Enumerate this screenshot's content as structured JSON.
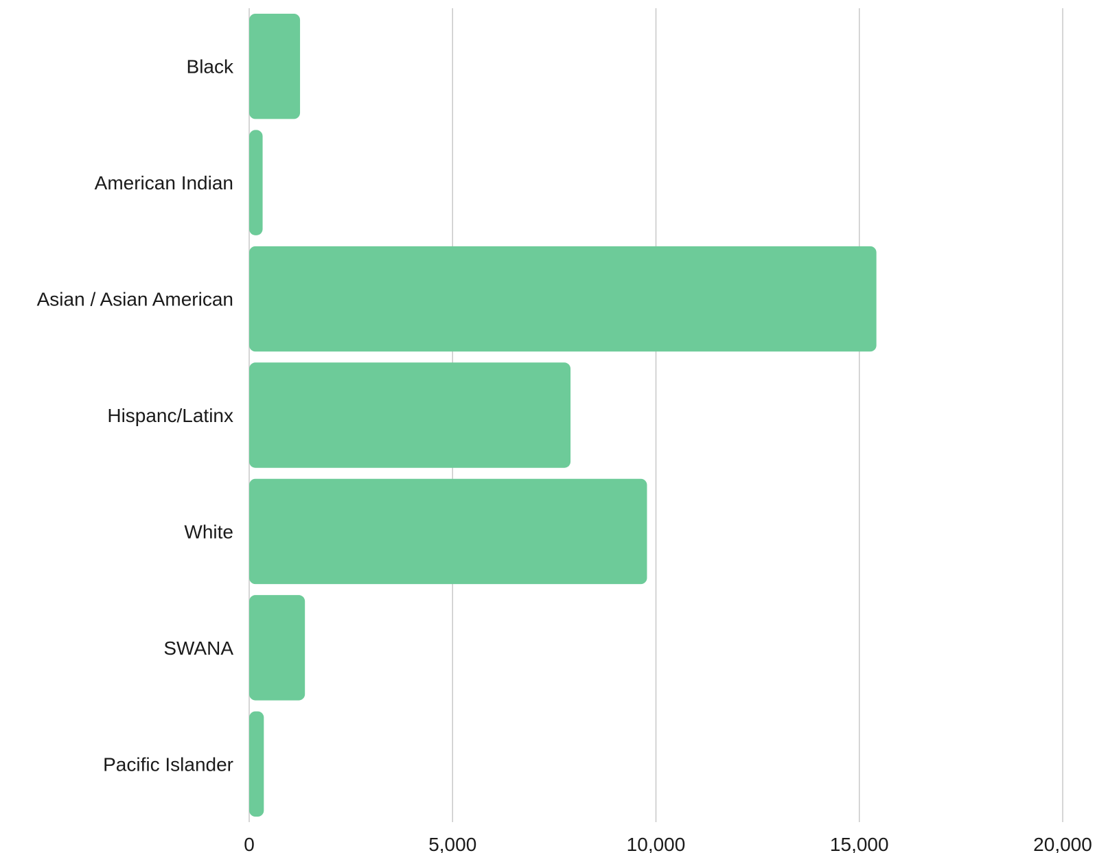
{
  "chart_data": {
    "type": "bar",
    "orientation": "horizontal",
    "title": "",
    "xlabel": "",
    "ylabel": "",
    "categories": [
      "Black",
      "American Indian",
      "Asian / Asian American",
      "Hispanc/Latinx",
      "White",
      "SWANA",
      "Pacific Islander"
    ],
    "values": [
      1250,
      330,
      15420,
      7900,
      9780,
      1370,
      360
    ],
    "xlim": [
      0,
      20000
    ],
    "xticks": [
      0,
      5000,
      10000,
      15000,
      20000
    ],
    "xtick_labels": [
      "0",
      "5,000",
      "10,000",
      "15,000",
      "20,000"
    ],
    "grid": "vertical",
    "legend": "none",
    "bar_color": "#6dcb99"
  }
}
